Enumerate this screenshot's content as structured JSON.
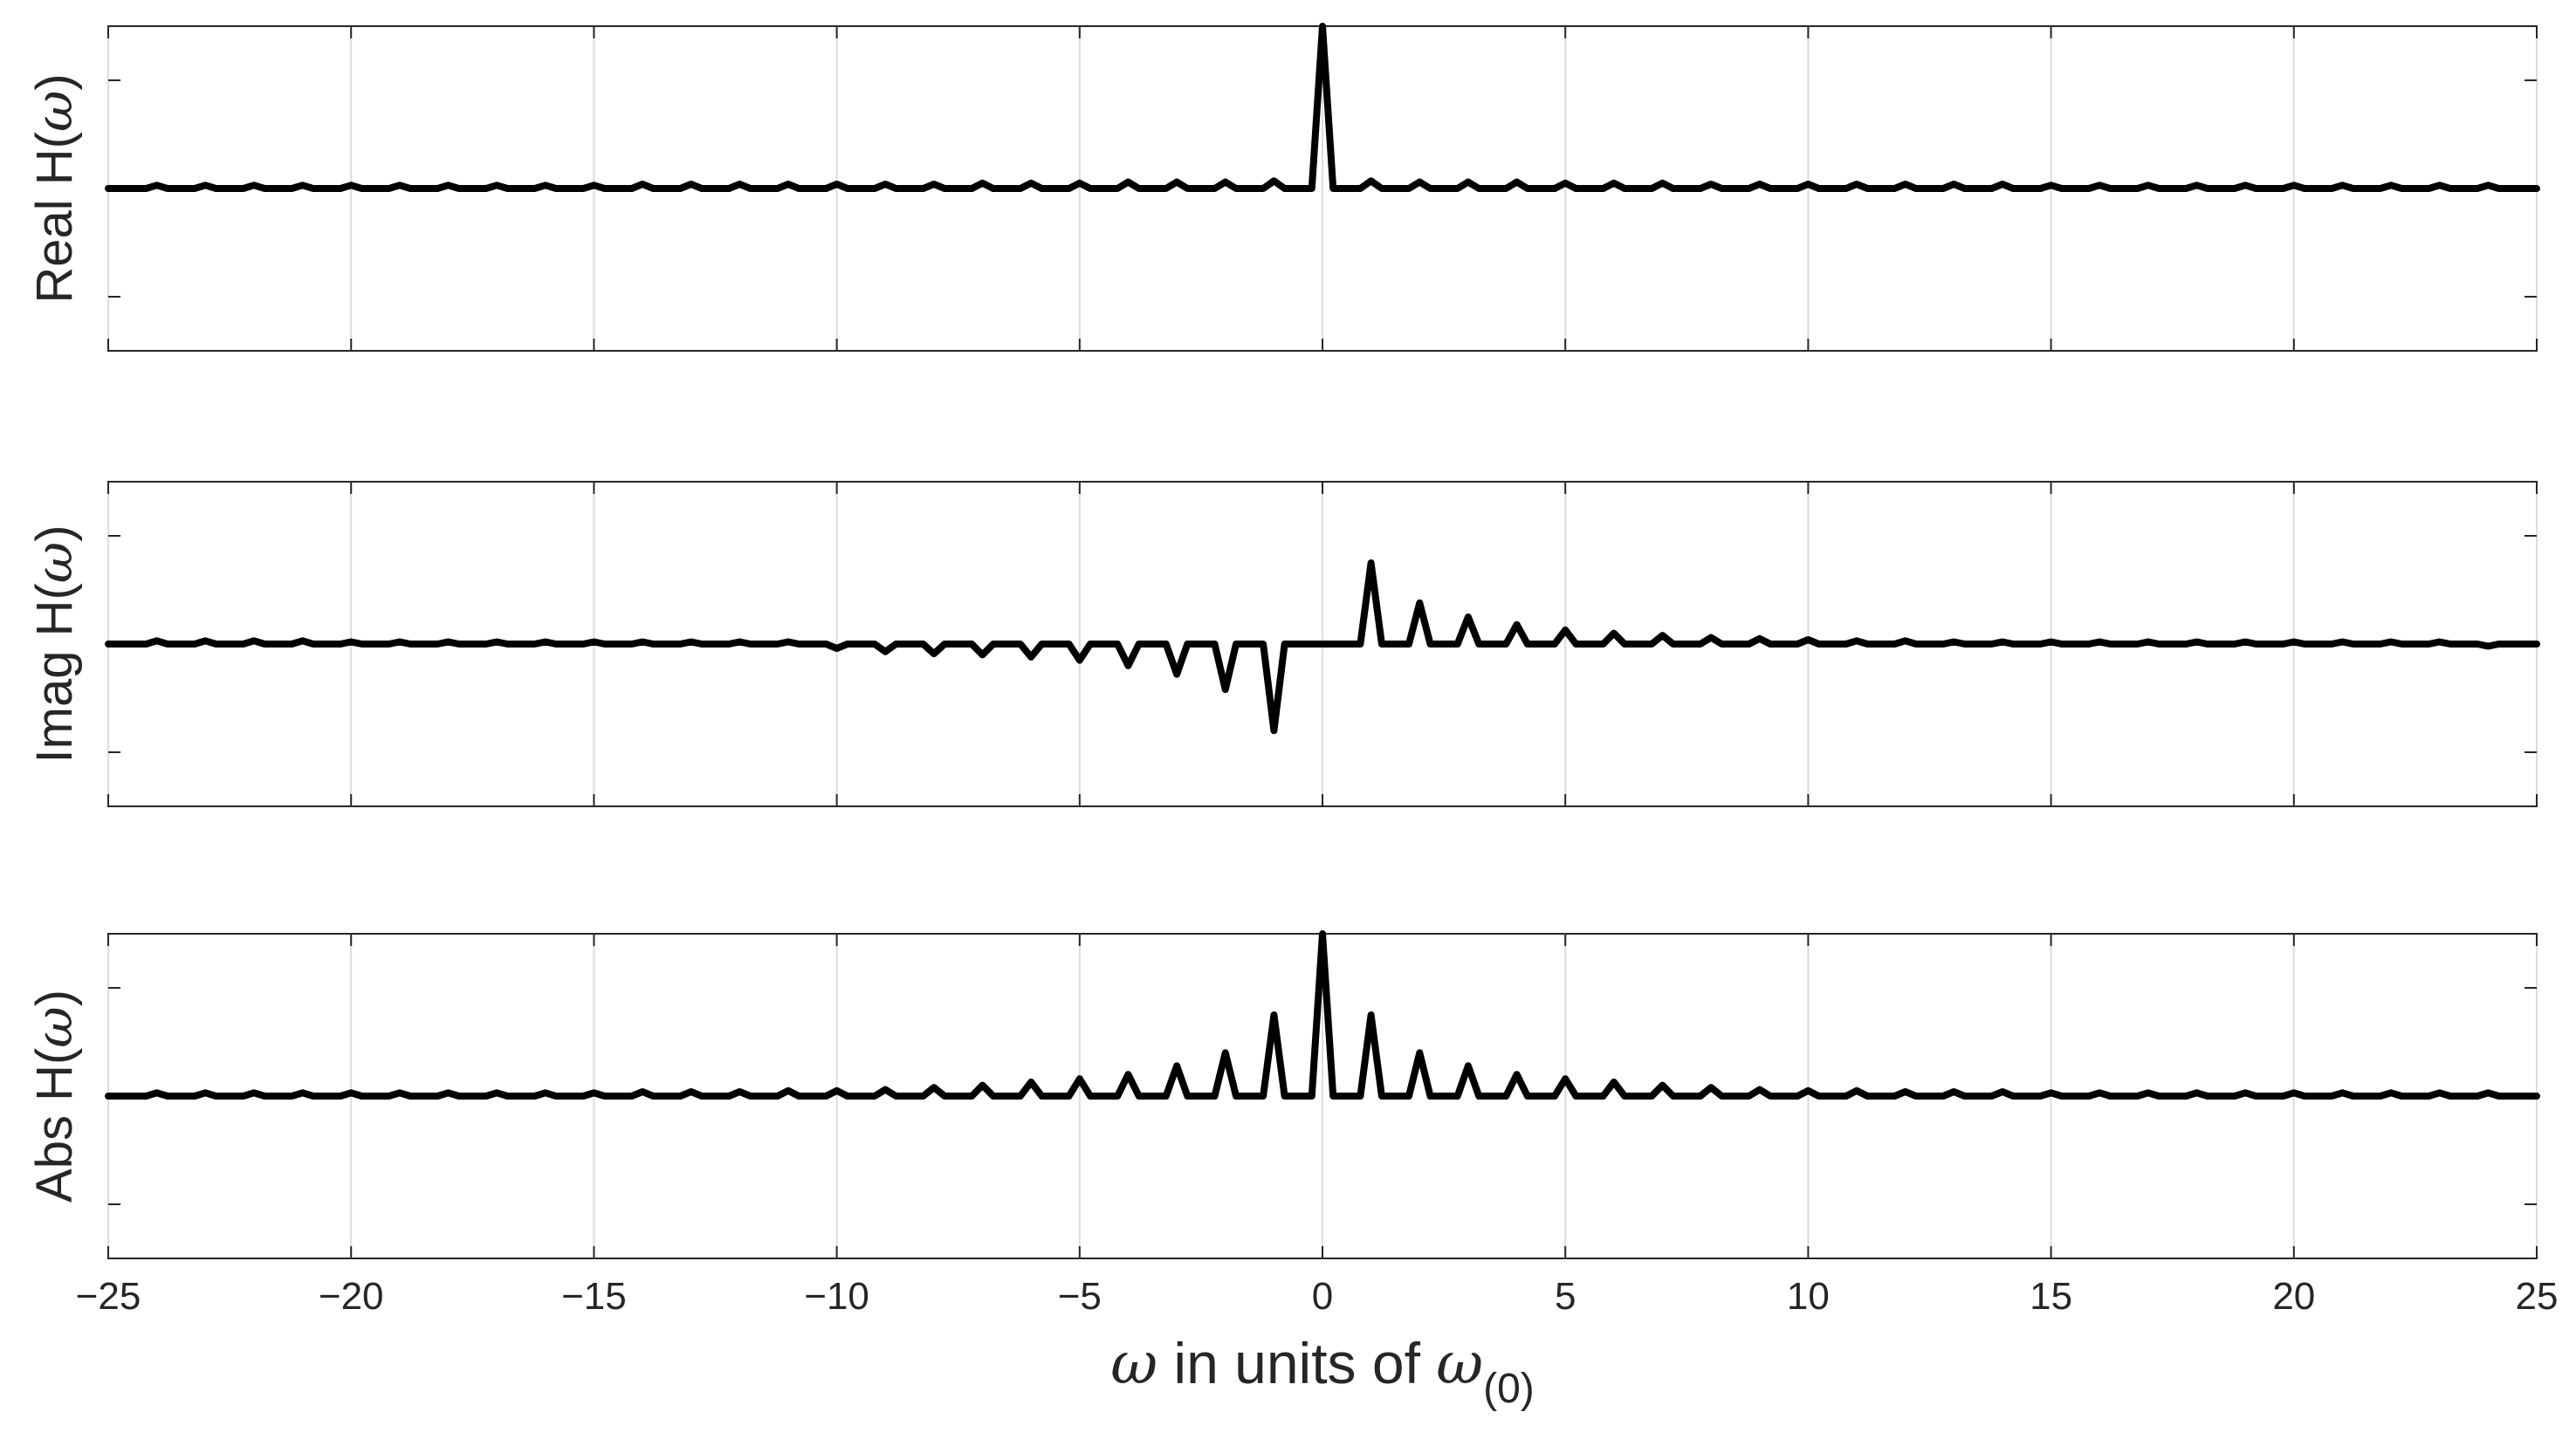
{
  "chart_data": {
    "type": "line",
    "xlabel": {
      "prefix": "ω",
      "text": " in units of ",
      "symbol": "ω",
      "subscript": "(0)"
    },
    "xlim": [
      -25,
      25
    ],
    "xticks": [
      -25,
      -20,
      -15,
      -10,
      -5,
      0,
      5,
      10,
      15,
      20,
      25
    ],
    "xtick_labels": [
      "−25",
      "−20",
      "−15",
      "−10",
      "−5",
      "0",
      "5",
      "10",
      "15",
      "20",
      "25"
    ],
    "grid": "vertical lines at x ticks",
    "line_color": "#000000",
    "subplots": [
      {
        "ylabel": {
          "text": "Real H(",
          "symbol": "ω",
          "close": ")"
        },
        "ylim": [
          -1.5,
          1.5
        ],
        "yticks": [
          -1,
          0,
          1
        ],
        "peaks": [
          {
            "x": -24,
            "y": 0.03
          },
          {
            "x": -23,
            "y": 0.03
          },
          {
            "x": -22,
            "y": 0.03
          },
          {
            "x": -21,
            "y": 0.03
          },
          {
            "x": -20,
            "y": 0.03
          },
          {
            "x": -19,
            "y": 0.03
          },
          {
            "x": -18,
            "y": 0.03
          },
          {
            "x": -17,
            "y": 0.03
          },
          {
            "x": -16,
            "y": 0.03
          },
          {
            "x": -15,
            "y": 0.03
          },
          {
            "x": -14,
            "y": 0.04
          },
          {
            "x": -13,
            "y": 0.04
          },
          {
            "x": -12,
            "y": 0.04
          },
          {
            "x": -11,
            "y": 0.04
          },
          {
            "x": -10,
            "y": 0.04
          },
          {
            "x": -9,
            "y": 0.04
          },
          {
            "x": -8,
            "y": 0.04
          },
          {
            "x": -7,
            "y": 0.05
          },
          {
            "x": -6,
            "y": 0.05
          },
          {
            "x": -5,
            "y": 0.05
          },
          {
            "x": -4,
            "y": 0.06
          },
          {
            "x": -3,
            "y": 0.06
          },
          {
            "x": -2,
            "y": 0.06
          },
          {
            "x": -1,
            "y": 0.07
          },
          {
            "x": 0,
            "y": 1.5
          },
          {
            "x": 1,
            "y": 0.07
          },
          {
            "x": 2,
            "y": 0.06
          },
          {
            "x": 3,
            "y": 0.06
          },
          {
            "x": 4,
            "y": 0.06
          },
          {
            "x": 5,
            "y": 0.05
          },
          {
            "x": 6,
            "y": 0.05
          },
          {
            "x": 7,
            "y": 0.05
          },
          {
            "x": 8,
            "y": 0.04
          },
          {
            "x": 9,
            "y": 0.04
          },
          {
            "x": 10,
            "y": 0.04
          },
          {
            "x": 11,
            "y": 0.04
          },
          {
            "x": 12,
            "y": 0.04
          },
          {
            "x": 13,
            "y": 0.04
          },
          {
            "x": 14,
            "y": 0.04
          },
          {
            "x": 15,
            "y": 0.03
          },
          {
            "x": 16,
            "y": 0.03
          },
          {
            "x": 17,
            "y": 0.03
          },
          {
            "x": 18,
            "y": 0.03
          },
          {
            "x": 19,
            "y": 0.03
          },
          {
            "x": 20,
            "y": 0.03
          },
          {
            "x": 21,
            "y": 0.03
          },
          {
            "x": 22,
            "y": 0.03
          },
          {
            "x": 23,
            "y": 0.03
          },
          {
            "x": 24,
            "y": 0.03
          }
        ]
      },
      {
        "ylabel": {
          "text": "Imag H(",
          "symbol": "ω",
          "close": ")"
        },
        "ylim": [
          -1.5,
          1.5
        ],
        "yticks": [
          -1,
          0,
          1
        ],
        "peaks": [
          {
            "x": -24,
            "y": 0.03
          },
          {
            "x": -23,
            "y": 0.03
          },
          {
            "x": -22,
            "y": 0.03
          },
          {
            "x": -21,
            "y": 0.03
          },
          {
            "x": -20,
            "y": 0.02
          },
          {
            "x": -19,
            "y": 0.02
          },
          {
            "x": -18,
            "y": 0.02
          },
          {
            "x": -17,
            "y": 0.02
          },
          {
            "x": -16,
            "y": 0.02
          },
          {
            "x": -15,
            "y": 0.02
          },
          {
            "x": -14,
            "y": 0.02
          },
          {
            "x": -13,
            "y": 0.02
          },
          {
            "x": -12,
            "y": 0.02
          },
          {
            "x": -11,
            "y": 0.02
          },
          {
            "x": -10,
            "y": -0.04
          },
          {
            "x": -9,
            "y": -0.07
          },
          {
            "x": -8,
            "y": -0.09
          },
          {
            "x": -7,
            "y": -0.1
          },
          {
            "x": -6,
            "y": -0.12
          },
          {
            "x": -5,
            "y": -0.15
          },
          {
            "x": -4,
            "y": -0.2
          },
          {
            "x": -3,
            "y": -0.28
          },
          {
            "x": -2,
            "y": -0.42
          },
          {
            "x": -1,
            "y": -0.8
          },
          {
            "x": 1,
            "y": 0.75
          },
          {
            "x": 2,
            "y": 0.38
          },
          {
            "x": 3,
            "y": 0.25
          },
          {
            "x": 4,
            "y": 0.18
          },
          {
            "x": 5,
            "y": 0.13
          },
          {
            "x": 6,
            "y": 0.1
          },
          {
            "x": 7,
            "y": 0.08
          },
          {
            "x": 8,
            "y": 0.06
          },
          {
            "x": 9,
            "y": 0.05
          },
          {
            "x": 10,
            "y": 0.04
          },
          {
            "x": 11,
            "y": 0.03
          },
          {
            "x": 12,
            "y": 0.03
          },
          {
            "x": 13,
            "y": 0.02
          },
          {
            "x": 14,
            "y": 0.02
          },
          {
            "x": 15,
            "y": 0.02
          },
          {
            "x": 16,
            "y": 0.02
          },
          {
            "x": 17,
            "y": 0.02
          },
          {
            "x": 18,
            "y": 0.02
          },
          {
            "x": 19,
            "y": 0.02
          },
          {
            "x": 20,
            "y": 0.02
          },
          {
            "x": 21,
            "y": 0.02
          },
          {
            "x": 22,
            "y": 0.02
          },
          {
            "x": 23,
            "y": 0.02
          },
          {
            "x": 24,
            "y": -0.02
          }
        ]
      },
      {
        "ylabel": {
          "text": "Abs H(",
          "symbol": "ω",
          "close": ")"
        },
        "ylim": [
          -1.5,
          1.5
        ],
        "yticks": [
          -1,
          0,
          1
        ],
        "peaks": [
          {
            "x": -24,
            "y": 0.03
          },
          {
            "x": -23,
            "y": 0.03
          },
          {
            "x": -22,
            "y": 0.03
          },
          {
            "x": -21,
            "y": 0.03
          },
          {
            "x": -20,
            "y": 0.03
          },
          {
            "x": -19,
            "y": 0.03
          },
          {
            "x": -18,
            "y": 0.03
          },
          {
            "x": -17,
            "y": 0.03
          },
          {
            "x": -16,
            "y": 0.03
          },
          {
            "x": -15,
            "y": 0.03
          },
          {
            "x": -14,
            "y": 0.04
          },
          {
            "x": -13,
            "y": 0.04
          },
          {
            "x": -12,
            "y": 0.04
          },
          {
            "x": -11,
            "y": 0.05
          },
          {
            "x": -10,
            "y": 0.05
          },
          {
            "x": -9,
            "y": 0.06
          },
          {
            "x": -8,
            "y": 0.08
          },
          {
            "x": -7,
            "y": 0.1
          },
          {
            "x": -6,
            "y": 0.13
          },
          {
            "x": -5,
            "y": 0.16
          },
          {
            "x": -4,
            "y": 0.2
          },
          {
            "x": -3,
            "y": 0.28
          },
          {
            "x": -2,
            "y": 0.4
          },
          {
            "x": -1,
            "y": 0.75
          },
          {
            "x": 0,
            "y": 1.5
          },
          {
            "x": 1,
            "y": 0.75
          },
          {
            "x": 2,
            "y": 0.4
          },
          {
            "x": 3,
            "y": 0.28
          },
          {
            "x": 4,
            "y": 0.2
          },
          {
            "x": 5,
            "y": 0.16
          },
          {
            "x": 6,
            "y": 0.13
          },
          {
            "x": 7,
            "y": 0.1
          },
          {
            "x": 8,
            "y": 0.08
          },
          {
            "x": 9,
            "y": 0.06
          },
          {
            "x": 10,
            "y": 0.05
          },
          {
            "x": 11,
            "y": 0.05
          },
          {
            "x": 12,
            "y": 0.04
          },
          {
            "x": 13,
            "y": 0.04
          },
          {
            "x": 14,
            "y": 0.04
          },
          {
            "x": 15,
            "y": 0.03
          },
          {
            "x": 16,
            "y": 0.03
          },
          {
            "x": 17,
            "y": 0.03
          },
          {
            "x": 18,
            "y": 0.03
          },
          {
            "x": 19,
            "y": 0.03
          },
          {
            "x": 20,
            "y": 0.03
          },
          {
            "x": 21,
            "y": 0.03
          },
          {
            "x": 22,
            "y": 0.03
          },
          {
            "x": 23,
            "y": 0.03
          },
          {
            "x": 24,
            "y": 0.03
          }
        ]
      }
    ]
  }
}
